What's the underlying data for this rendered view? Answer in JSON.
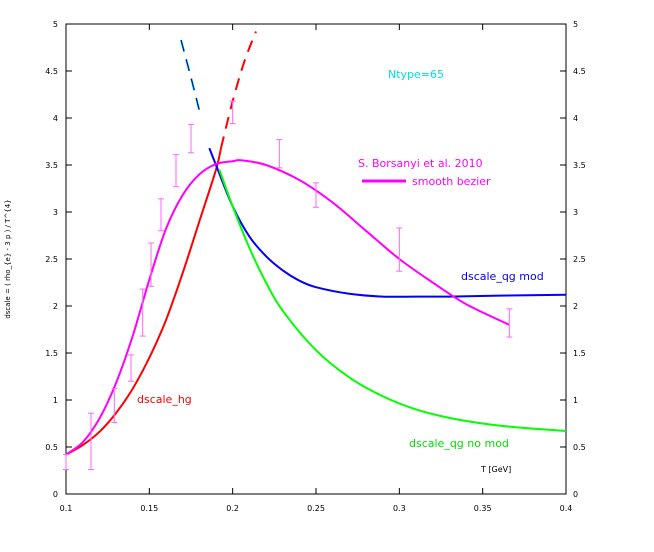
{
  "chart_data": {
    "type": "line",
    "ylabel": "dscale = ( rho_{e} - 3 p ) / T^{4}",
    "xlabel": "T [GeV]",
    "xlim": [
      0.1,
      0.4
    ],
    "ylim": [
      0,
      5
    ],
    "x_ticks": [
      "0.1",
      "0.15",
      "0.2",
      "0.25",
      "0.3",
      "0.35",
      "0.4"
    ],
    "y_ticks": [
      "0",
      "0.5",
      "1",
      "1.5",
      "2",
      "2.5",
      "3",
      "3.5",
      "4",
      "4.5",
      "5"
    ],
    "annotations": {
      "ntype": "Ntype=65",
      "data_source": "S. Borsanyi et al. 2010",
      "smooth_label": "smooth bezier",
      "hg_label": "dscale_hg",
      "qg_mod_label": "dscale_qg mod",
      "qg_nomod_label": "dscale_qg no mod"
    },
    "colors": {
      "hg": "#ff0000",
      "qg_mod": "#0000ff",
      "qg_nomod": "#00ff00",
      "smooth": "#ff00ff",
      "errorbars": "#ff66ff",
      "dashed_cyan": "#00cccc",
      "ntype": "#00e0e0"
    },
    "series": [
      {
        "name": "dscale_hg",
        "style": "solid",
        "color_key": "hg",
        "x": [
          0.1,
          0.11,
          0.12,
          0.13,
          0.14,
          0.15,
          0.16,
          0.17,
          0.18,
          0.19,
          0.193
        ],
        "y": [
          0.42,
          0.52,
          0.66,
          0.86,
          1.12,
          1.45,
          1.85,
          2.35,
          2.9,
          3.45,
          3.68
        ]
      },
      {
        "name": "dscale_hg_dashed",
        "style": "dashed",
        "color_key": "hg",
        "x": [
          0.193,
          0.2,
          0.207,
          0.214
        ],
        "y": [
          3.68,
          4.18,
          4.6,
          4.92
        ]
      },
      {
        "name": "dscale_qg mod",
        "style": "solid",
        "color_key": "qg_mod",
        "x": [
          0.186,
          0.19,
          0.2,
          0.21,
          0.22,
          0.23,
          0.24,
          0.25,
          0.27,
          0.29,
          0.31,
          0.33,
          0.36,
          0.4
        ],
        "y": [
          3.68,
          3.5,
          3.06,
          2.74,
          2.53,
          2.38,
          2.27,
          2.2,
          2.13,
          2.1,
          2.1,
          2.1,
          2.11,
          2.12
        ]
      },
      {
        "name": "dscale_qg no mod",
        "style": "solid",
        "color_key": "qg_nomod",
        "x": [
          0.192,
          0.2,
          0.21,
          0.22,
          0.23,
          0.25,
          0.27,
          0.29,
          0.31,
          0.33,
          0.35,
          0.37,
          0.4
        ],
        "y": [
          3.45,
          3.06,
          2.62,
          2.25,
          1.95,
          1.53,
          1.24,
          1.04,
          0.9,
          0.81,
          0.75,
          0.71,
          0.67
        ]
      },
      {
        "name": "dscale_qg_dashed",
        "style": "dashed",
        "color_key": "dashed_cyan",
        "x": [
          0.169,
          0.175,
          0.181
        ],
        "y": [
          4.83,
          4.43,
          4.01
        ]
      },
      {
        "name": "smooth bezier",
        "style": "solid",
        "color_key": "smooth",
        "x": [
          0.1,
          0.11,
          0.12,
          0.13,
          0.14,
          0.15,
          0.16,
          0.17,
          0.18,
          0.19,
          0.2,
          0.205,
          0.22,
          0.24,
          0.26,
          0.28,
          0.3,
          0.32,
          0.34,
          0.366
        ],
        "y": [
          0.42,
          0.55,
          0.8,
          1.18,
          1.68,
          2.28,
          2.82,
          3.18,
          3.4,
          3.51,
          3.54,
          3.55,
          3.5,
          3.34,
          3.1,
          2.8,
          2.5,
          2.25,
          2.02,
          1.8
        ]
      }
    ],
    "data_points": {
      "name": "S. Borsanyi et al. 2010",
      "x": [
        0.1,
        0.115,
        0.129,
        0.139,
        0.146,
        0.151,
        0.157,
        0.166,
        0.175,
        0.2,
        0.228,
        0.25,
        0.3,
        0.366
      ],
      "y": [
        0.34,
        0.56,
        0.94,
        1.34,
        1.93,
        2.44,
        2.97,
        3.44,
        3.78,
        4.06,
        3.62,
        3.18,
        2.6,
        1.82
      ],
      "yerr": [
        0.08,
        0.3,
        0.18,
        0.14,
        0.25,
        0.23,
        0.17,
        0.17,
        0.15,
        0.12,
        0.15,
        0.13,
        0.23,
        0.15
      ]
    }
  }
}
